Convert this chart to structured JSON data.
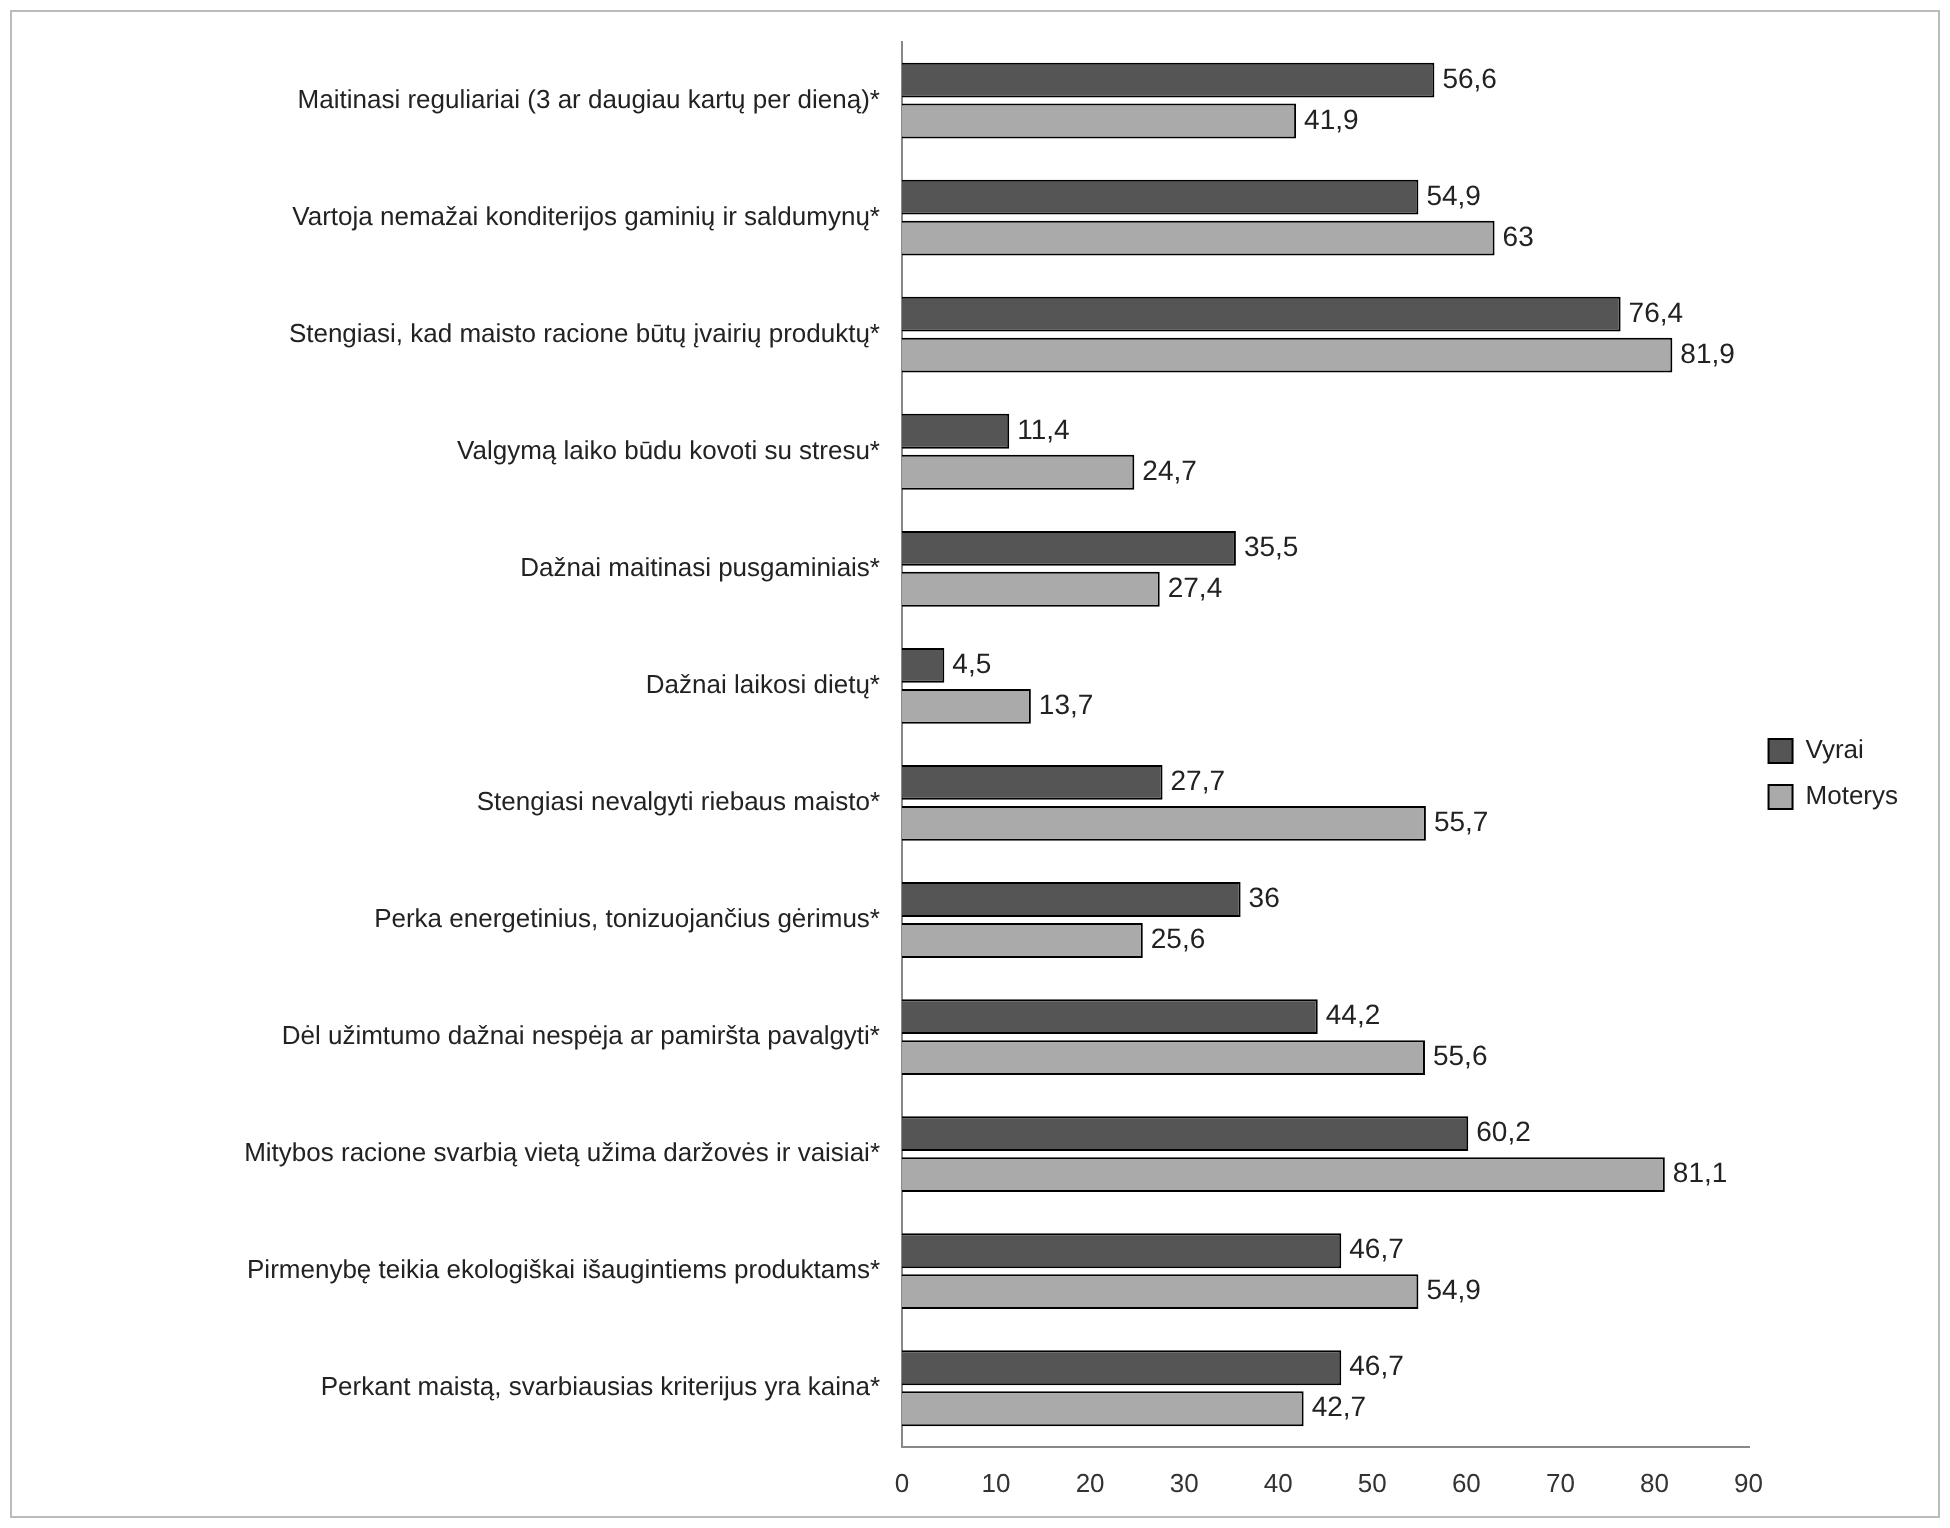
{
  "chart_data": {
    "type": "bar",
    "orientation": "horizontal",
    "categories": [
      "Maitinasi reguliariai (3 ar daugiau kartų per dieną)*",
      "Vartoja nemažai konditerijos gaminių ir saldumynų*",
      "Stengiasi, kad maisto racione būtų įvairių produktų*",
      "Valgymą laiko būdu kovoti su stresu*",
      "Dažnai maitinasi pusgaminiais*",
      "Dažnai laikosi dietų*",
      "Stengiasi nevalgyti riebaus maisto*",
      "Perka energetinius, tonizuojančius gėrimus*",
      "Dėl užimtumo dažnai nespėja ar pamiršta pavalgyti*",
      "Mitybos racione svarbią vietą užima daržovės ir vaisiai*",
      "Pirmenybę teikia ekologiškai išaugintiems produktams*",
      "Perkant maistą, svarbiausias kriterijus yra kaina*"
    ],
    "series": [
      {
        "name": "Vyrai",
        "color": "#555555",
        "values": [
          56.6,
          54.9,
          76.4,
          11.4,
          35.5,
          4.5,
          27.7,
          36,
          44.2,
          60.2,
          46.7,
          46.7
        ],
        "value_labels": [
          "56,6",
          "54,9",
          "76,4",
          "11,4",
          "35,5",
          "4,5",
          "27,7",
          "36",
          "44,2",
          "60,2",
          "46,7",
          "46,7"
        ]
      },
      {
        "name": "Moterys",
        "color": "#aaaaaa",
        "values": [
          41.9,
          63,
          81.9,
          24.7,
          27.4,
          13.7,
          55.7,
          25.6,
          55.6,
          81.1,
          54.9,
          42.7
        ],
        "value_labels": [
          "41,9",
          "63",
          "81,9",
          "24,7",
          "27,4",
          "13,7",
          "55,7",
          "25,6",
          "55,6",
          "81,1",
          "54,9",
          "42,7"
        ]
      }
    ],
    "xlim": [
      0,
      90
    ],
    "xticks": [
      0,
      10,
      20,
      30,
      40,
      50,
      60,
      70,
      80,
      90
    ],
    "grid": false,
    "legend": "right"
  }
}
